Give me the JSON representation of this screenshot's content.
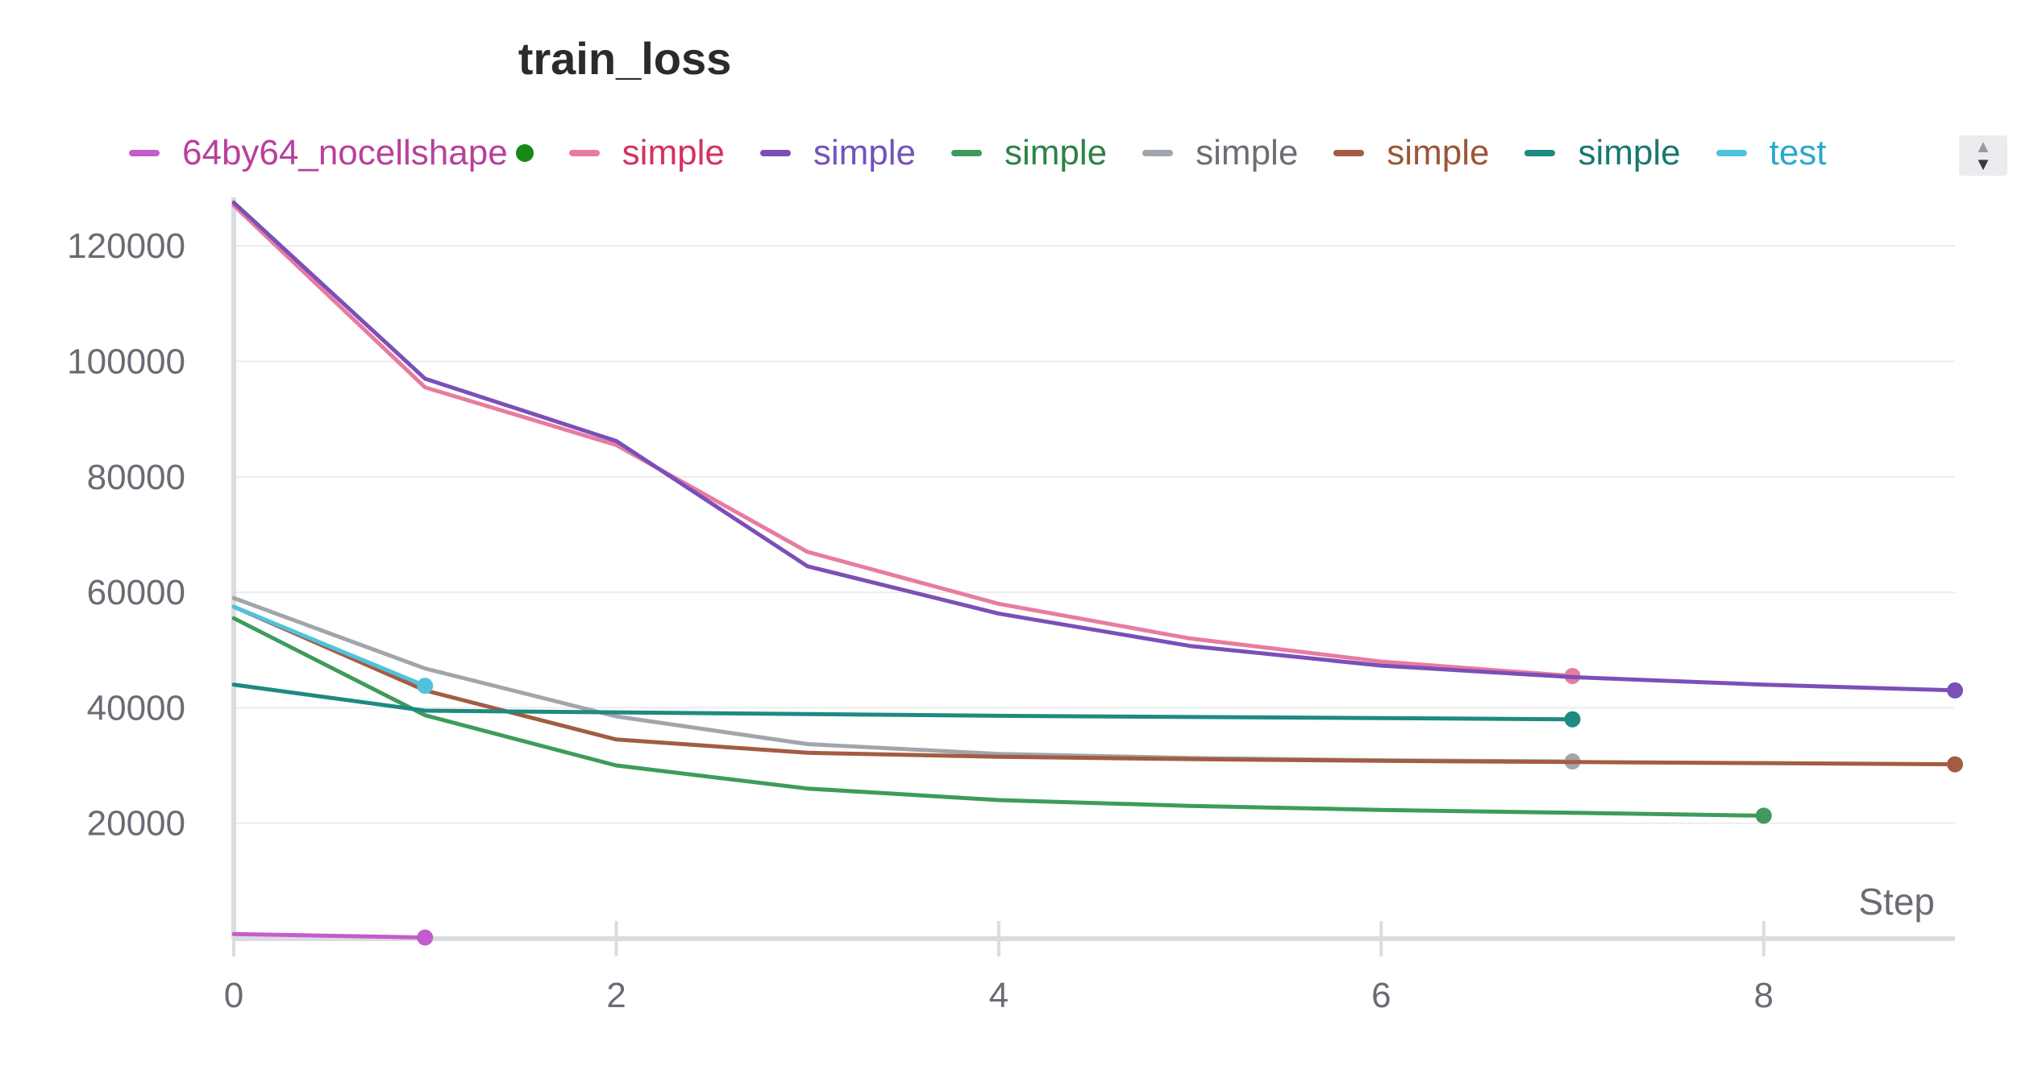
{
  "chart_data": {
    "type": "line",
    "title": "train_loss",
    "xlabel": "Step",
    "ylabel": "",
    "xlim": [
      0,
      9
    ],
    "ylim": [
      0,
      127000
    ],
    "x_ticks": [
      "0",
      "2",
      "4",
      "6",
      "8"
    ],
    "x_tick_values": [
      0,
      2,
      4,
      6,
      8
    ],
    "y_ticks": [
      "20000",
      "40000",
      "60000",
      "80000",
      "100000",
      "120000"
    ],
    "y_tick_values": [
      20000,
      40000,
      60000,
      80000,
      100000,
      120000
    ],
    "grid": true,
    "legend_position": "top",
    "series": [
      {
        "name": "64by64_nocellshape",
        "color": "#c45ccc",
        "text_color": "#b8409a",
        "x": [
          0,
          1
        ],
        "y": [
          800,
          200
        ],
        "status_dot": "#148a14"
      },
      {
        "name": "simple",
        "color": "#e87ba0",
        "text_color": "#d6305f",
        "x": [
          0,
          1,
          2,
          3,
          4,
          5,
          6,
          7
        ],
        "y": [
          127000,
          95500,
          85500,
          67000,
          58000,
          52000,
          48000,
          45500
        ]
      },
      {
        "name": "simple",
        "color": "#7b4fb8",
        "text_color": "#7452bd",
        "x": [
          0,
          1,
          2,
          3,
          4,
          5,
          6,
          7,
          8,
          9
        ],
        "y": [
          127500,
          97000,
          86200,
          64500,
          56300,
          50700,
          47300,
          45300,
          44000,
          43000
        ]
      },
      {
        "name": "simple",
        "color": "#3f9b5b",
        "text_color": "#2d8248",
        "x": [
          0,
          1,
          2,
          3,
          4,
          5,
          6,
          7,
          8
        ],
        "y": [
          55500,
          38700,
          30000,
          26000,
          24000,
          23000,
          22300,
          21800,
          21300
        ]
      },
      {
        "name": "simple",
        "color": "#a0a6ab",
        "text_color": "#6b6f74",
        "x": [
          0,
          1,
          2,
          3,
          4,
          5,
          6,
          7
        ],
        "y": [
          59000,
          46800,
          38500,
          33700,
          32000,
          31300,
          30900,
          30700
        ]
      },
      {
        "name": "simple",
        "color": "#a35c43",
        "text_color": "#9c5638",
        "x": [
          0,
          1,
          2,
          3,
          4,
          5,
          6,
          7,
          8,
          9
        ],
        "y": [
          57500,
          43000,
          34500,
          32200,
          31500,
          31100,
          30800,
          30600,
          30400,
          30200
        ]
      },
      {
        "name": "simple",
        "color": "#1e8a80",
        "text_color": "#18786f",
        "x": [
          0,
          1,
          2,
          3,
          4,
          5,
          6,
          7
        ],
        "y": [
          44000,
          39500,
          39200,
          38900,
          38600,
          38400,
          38200,
          38000
        ]
      },
      {
        "name": "test",
        "color": "#4fc3dc",
        "text_color": "#2aa8cf",
        "x": [
          0,
          1
        ],
        "y": [
          57500,
          43800
        ]
      }
    ]
  }
}
